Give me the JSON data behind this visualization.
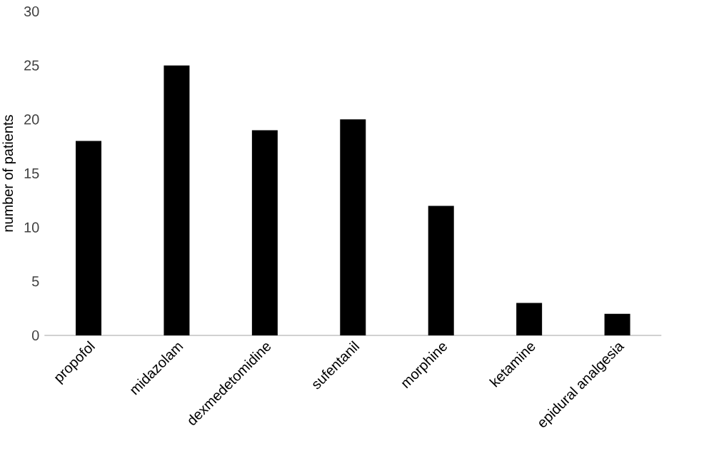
{
  "chart_data": {
    "type": "bar",
    "ylabel": "number of patients",
    "categories": [
      "propofol",
      "midazolam",
      "dexmedetomidine",
      "sufentanil",
      "morphine",
      "ketamine",
      "epidural analgesia"
    ],
    "values": [
      18,
      25,
      19,
      20,
      12,
      3,
      2
    ],
    "color": "#000000",
    "ylim": [
      0,
      30
    ],
    "yticks": [
      0,
      5,
      10,
      15,
      20,
      25,
      30
    ]
  }
}
